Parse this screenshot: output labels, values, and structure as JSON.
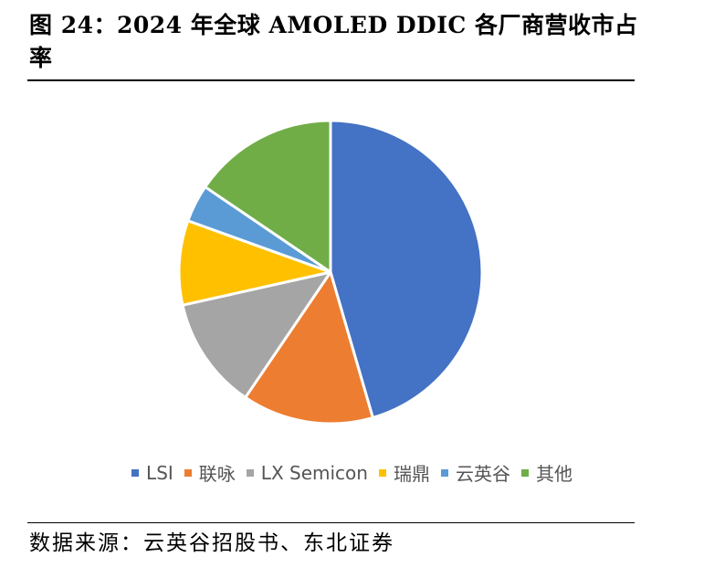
{
  "figure_title": "图 24：2024 年全球 AMOLED DDIC 各厂商营收市占率",
  "source_note": "数据来源：云英谷招股书、东北证券",
  "colors": {
    "LSI": "#4472C4",
    "联咏": "#ED7D31",
    "LX Semicon": "#A5A5A5",
    "瑞鼎": "#FFC000",
    "云英谷": "#5B9BD5",
    "其他": "#70AD47"
  },
  "chart_data": {
    "type": "pie",
    "title": "",
    "categories": [
      "LSI",
      "联咏",
      "LX Semicon",
      "瑞鼎",
      "云英谷",
      "其他"
    ],
    "values": [
      45.5,
      14.0,
      12.0,
      9.0,
      4.0,
      15.5
    ],
    "unit": "%",
    "start_angle": "12 o'clock",
    "direction": "clockwise",
    "legend": "bottom"
  }
}
